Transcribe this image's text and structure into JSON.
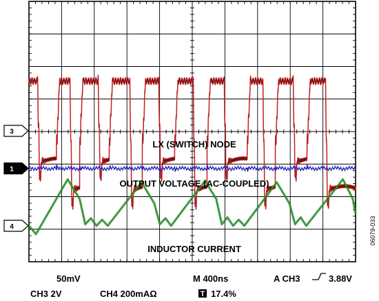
{
  "chart_data": {
    "type": "line",
    "traces": {
      "lx_node": {
        "label": "LX (SWITCH) NODE",
        "color": "#e03030",
        "channel_marker": "3",
        "high": 0.55,
        "low": -3.1,
        "ref": 0.0,
        "edges_us": [
          [
            -0.14,
            0.12
          ],
          [
            0.39,
            0.58
          ],
          [
            0.72,
            0.98
          ],
          [
            1.14,
            1.43
          ],
          [
            1.61,
            1.84
          ],
          [
            2.07,
            2.33
          ],
          [
            2.53,
            2.77
          ],
          [
            3.1,
            3.32
          ],
          [
            3.5,
            3.75
          ],
          [
            3.95,
            4.21
          ]
        ]
      },
      "output_voltage": {
        "label": "OUTPUT VOLTAGE (AC-COUPLED)",
        "color": "#2020c0",
        "channel_marker": "1",
        "ref": 0.0
      },
      "inductor_current": {
        "label": "INDUCTOR CURRENT",
        "color": "#229922",
        "channel_marker": "4",
        "ref": 0.0,
        "points": [
          [
            0.0,
            0.0
          ],
          [
            0.1,
            -0.28
          ],
          [
            0.55,
            1.55
          ],
          [
            0.72,
            0.9
          ],
          [
            0.8,
            0.05
          ],
          [
            0.88,
            0.25
          ],
          [
            0.96,
            0.0
          ],
          [
            1.04,
            0.2
          ],
          [
            1.12,
            0.0
          ],
          [
            1.6,
            1.45
          ],
          [
            1.78,
            0.75
          ],
          [
            1.86,
            0.05
          ],
          [
            1.94,
            0.25
          ],
          [
            2.02,
            0.0
          ],
          [
            2.5,
            1.5
          ],
          [
            2.66,
            0.9
          ],
          [
            2.74,
            0.05
          ],
          [
            2.82,
            0.28
          ],
          [
            2.9,
            0.0
          ],
          [
            2.98,
            0.2
          ],
          [
            3.06,
            0.0
          ],
          [
            3.52,
            1.45
          ],
          [
            3.7,
            0.75
          ],
          [
            3.78,
            0.05
          ],
          [
            3.86,
            0.28
          ],
          [
            3.94,
            0.0
          ],
          [
            4.46,
            1.55
          ],
          [
            4.6,
            0.9
          ],
          [
            4.64,
            0.4
          ]
        ]
      }
    },
    "readout": {
      "ch1_scale": "50mV",
      "ch3_scale": "CH3  2V",
      "ch4_scale": "CH4  200mAΩ",
      "timebase": "M  400ns",
      "trigger": "A  CH3",
      "trigger_level": "3.88V",
      "trigger_position": "17.4%",
      "trigger_glyph": "T"
    },
    "figure_id": "06079-033",
    "x_range_us": [
      0,
      4.64
    ],
    "grid": "on"
  }
}
